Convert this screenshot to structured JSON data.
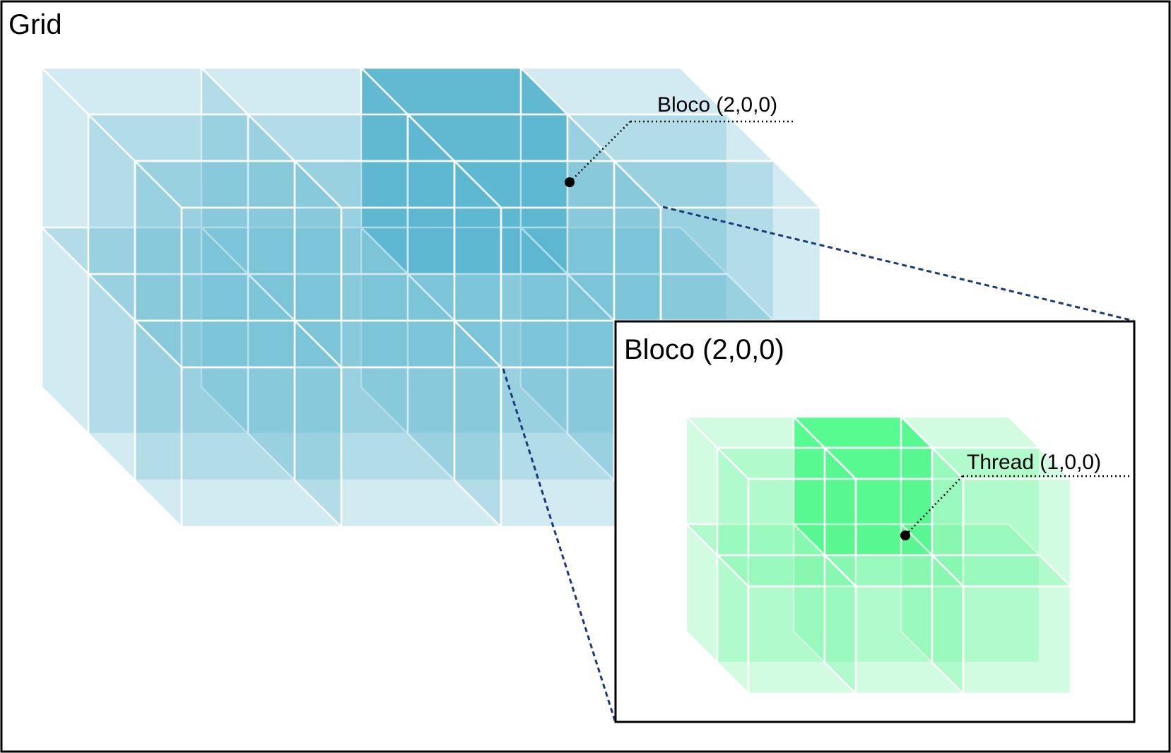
{
  "grid": {
    "title": "Grid",
    "cols": 4,
    "rows": 2,
    "layers": 3
  },
  "grid_callout": {
    "label": "Bloco (2,0,0)",
    "highlight": [
      2,
      0,
      0
    ]
  },
  "inset": {
    "title": "Bloco (2,0,0)",
    "cols": 3,
    "rows": 2,
    "layers": 2
  },
  "inset_callout": {
    "label": "Thread (1,0,0)",
    "highlight": [
      1,
      0,
      0
    ]
  },
  "colors": {
    "grid_fill": "#5db8d0",
    "grid_highlight": "#62bad2",
    "block_fill": "#5cf592",
    "block_highlight": "#57fb8f",
    "edge": "#ffffff",
    "zoom_line": "#1a3b78",
    "frame": "#000000"
  }
}
